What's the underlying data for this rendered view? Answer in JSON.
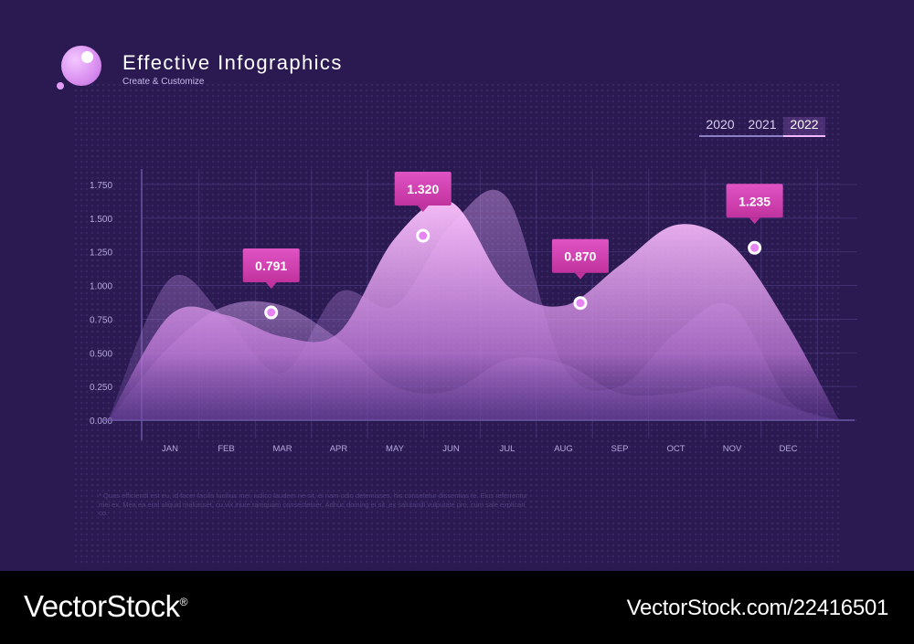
{
  "header": {
    "title": "Effective Infographics",
    "subtitle": "Create & Customize"
  },
  "year_tabs": [
    {
      "label": "2020",
      "active": false
    },
    {
      "label": "2021",
      "active": false
    },
    {
      "label": "2022",
      "active": true
    }
  ],
  "footnote": "* Quas efficiendi est eu, id facer facilis lucilius mei, iudico laudem ne sit, ei nam odio detemisses, his consetetur dissentias te. Eius referrentur mei ex. Mea ea erat aliquid maluisset, cu vix iriure tamquam consectetuer. Adhuc doming ei sit, ex salutandi vulputate pro, cum sale explicari co.",
  "watermark": {
    "brand": "VectorStock",
    "brand_mark": "®",
    "id": "VectorStock.com/22416501"
  },
  "colors": {
    "background": "#2b1a52",
    "accent": "#d33fb6",
    "area_light": "#f6b6ff",
    "area_mid": "#c080d8"
  },
  "chart_data": {
    "type": "area",
    "x": [
      "JAN",
      "FEB",
      "MAR",
      "APR",
      "MAY",
      "JUN",
      "JUL",
      "AUG",
      "SEP",
      "OCT",
      "NOV",
      "DEC"
    ],
    "ylim": [
      0,
      1.75
    ],
    "yticks": [
      "0.000",
      "0.250",
      "0.500",
      "0.750",
      "1.000",
      "1.250",
      "1.500",
      "1.750"
    ],
    "grid": true,
    "series": [
      {
        "values": [
          1.05,
          0.75,
          0.35,
          0.95,
          0.85,
          1.45,
          1.65,
          0.4,
          0.25,
          0.65,
          0.85,
          0.15
        ]
      },
      {
        "values": [
          0.55,
          0.85,
          0.85,
          0.6,
          0.25,
          0.22,
          0.45,
          0.42,
          0.2,
          0.2,
          0.25,
          0.1
        ]
      },
      {
        "values": [
          0.78,
          0.78,
          0.62,
          0.65,
          1.35,
          1.62,
          1.0,
          0.85,
          1.15,
          1.45,
          1.3,
          0.7
        ]
      }
    ],
    "callouts": [
      {
        "label": "0.791",
        "x": 1.8,
        "y": 0.8
      },
      {
        "label": "1.320",
        "x": 4.5,
        "y": 1.37
      },
      {
        "label": "0.870",
        "x": 7.3,
        "y": 0.87
      },
      {
        "label": "1.235",
        "x": 10.4,
        "y": 1.28
      }
    ]
  }
}
